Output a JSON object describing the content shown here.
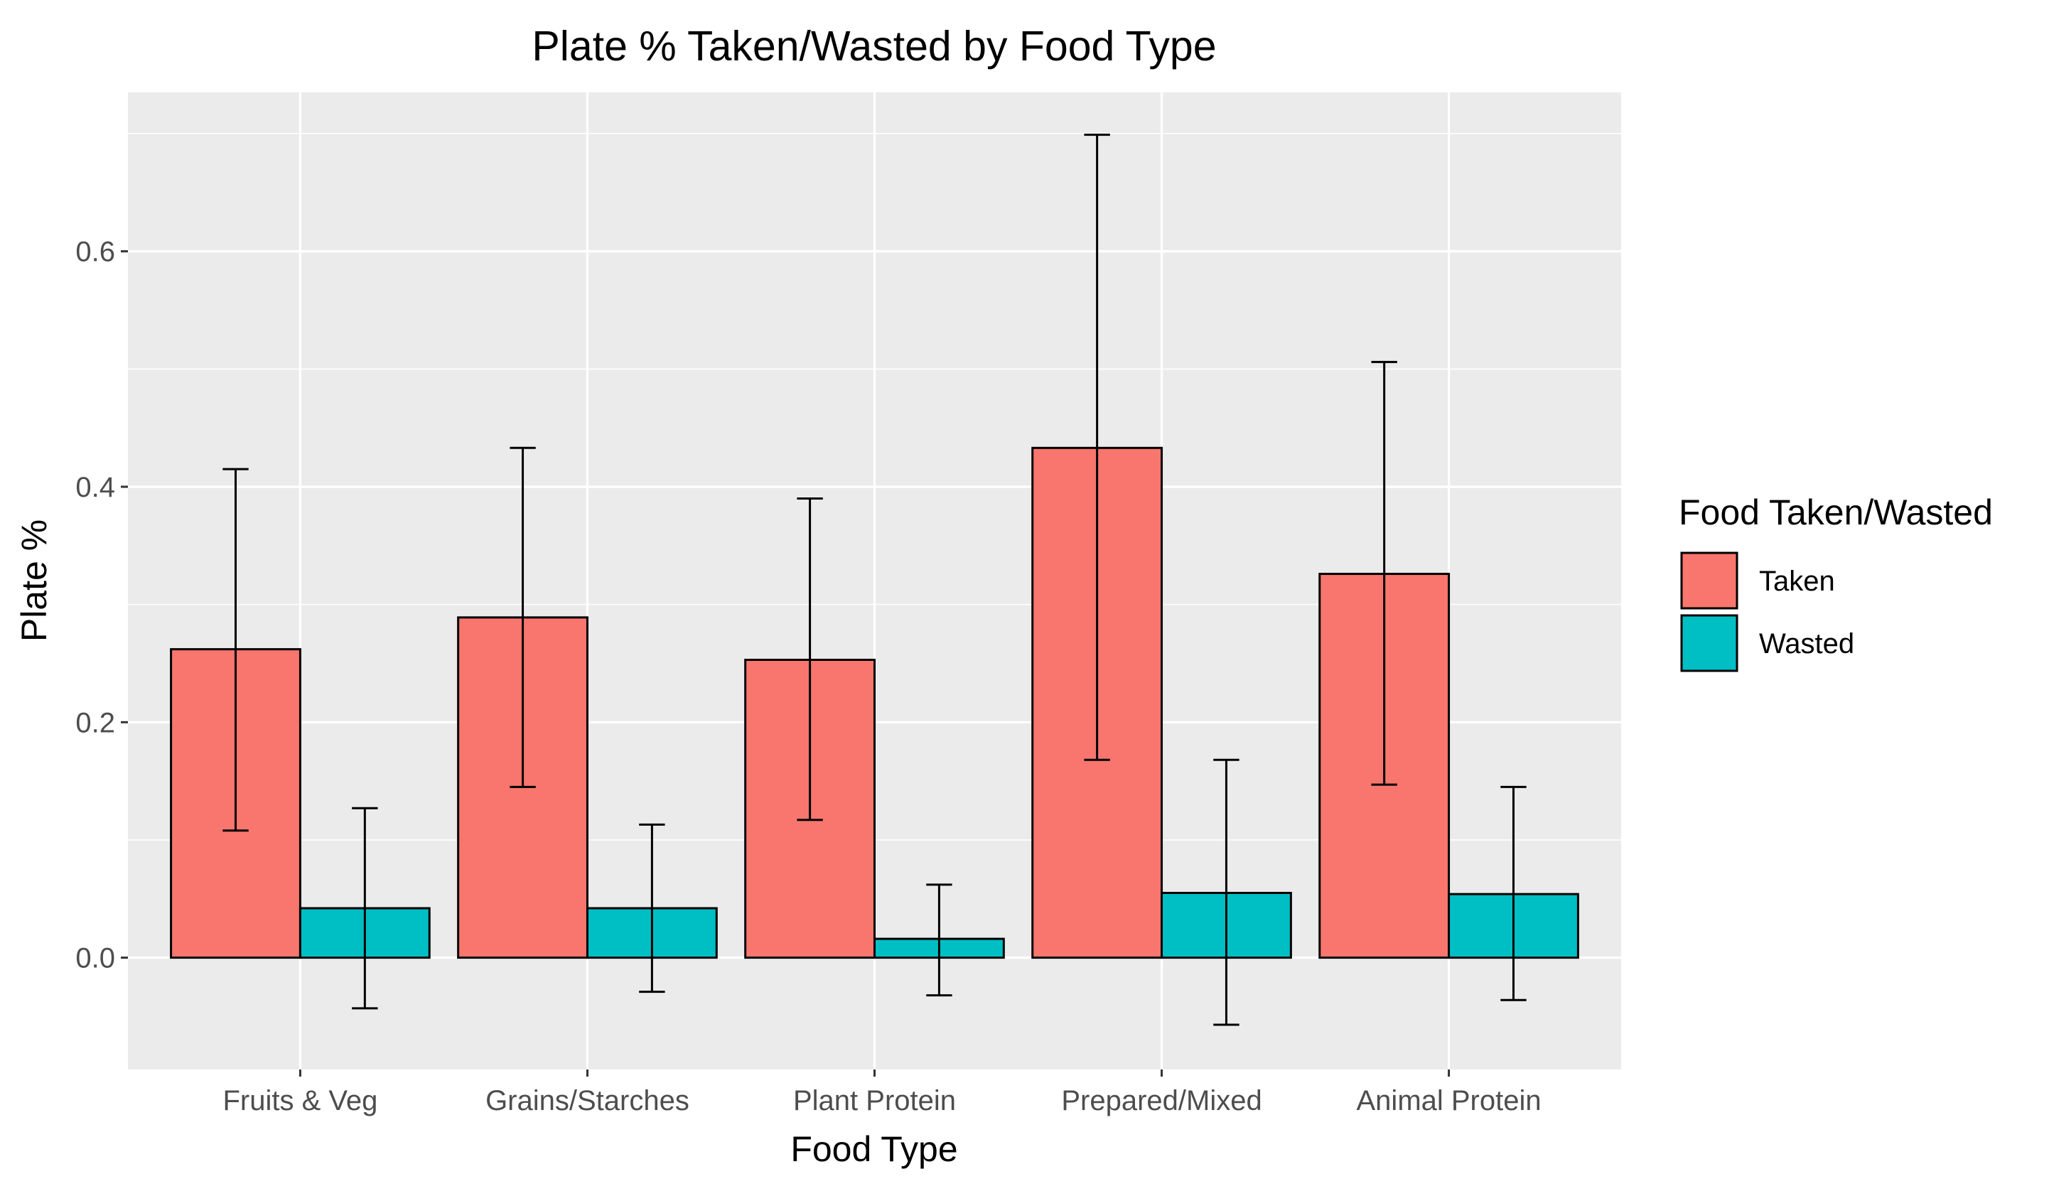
{
  "chart_data": {
    "type": "bar",
    "title": "Plate % Taken/Wasted by Food Type",
    "xlabel": "Food Type",
    "ylabel": "Plate %",
    "categories": [
      "Fruits & Veg",
      "Grains/Starches",
      "Plant Protein",
      "Prepared/Mixed",
      "Animal Protein"
    ],
    "series": [
      {
        "name": "Taken",
        "color": "#F8766D",
        "values": [
          0.262,
          0.289,
          0.253,
          0.433,
          0.326
        ],
        "error_low": [
          0.108,
          0.145,
          0.117,
          0.168,
          0.147
        ],
        "error_high": [
          0.415,
          0.433,
          0.39,
          0.699,
          0.506
        ]
      },
      {
        "name": "Wasted",
        "color": "#00BFC4",
        "values": [
          0.042,
          0.042,
          0.016,
          0.055,
          0.054
        ],
        "error_low": [
          -0.043,
          -0.029,
          -0.032,
          -0.057,
          -0.036
        ],
        "error_high": [
          0.127,
          0.113,
          0.062,
          0.168,
          0.145
        ]
      }
    ],
    "ylim": [
      -0.095,
      0.735
    ],
    "yticks": [
      0.0,
      0.2,
      0.4,
      0.6
    ],
    "ytick_labels": [
      "0.0",
      "0.2",
      "0.4",
      "0.6"
    ],
    "grid": true,
    "panel_color": "#EBEBEB",
    "legend": {
      "title": "Food Taken/Wasted",
      "position": "right",
      "entries": [
        "Taken",
        "Wasted"
      ]
    }
  }
}
